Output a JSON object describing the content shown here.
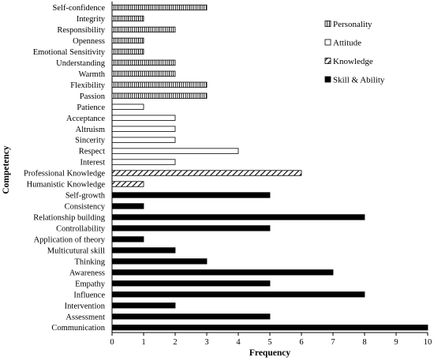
{
  "chart_data": {
    "type": "bar",
    "orientation": "horizontal",
    "xlabel": "Frequency",
    "ylabel": "Competency",
    "xlim": [
      0,
      10
    ],
    "xticks": [
      0,
      1,
      2,
      3,
      4,
      5,
      6,
      7,
      8,
      9,
      10
    ],
    "grid": false,
    "legend_position": "top-right",
    "categories": [
      "Self-confidence",
      "Integrity",
      "Responsibility",
      "Openness",
      "Emotional Sensitivity",
      "Understanding",
      "Warmth",
      "Flexibility",
      "Passion",
      "Patience",
      "Acceptance",
      "Altruism",
      "Sincerity",
      "Respect",
      "Interest",
      "Professional Knowledge",
      "Humanistic Knowledge",
      "Self-growth",
      "Consistency",
      "Relationship building",
      "Controllability",
      "Application of theory",
      "Multicutural skill",
      "Thinking",
      "Awareness",
      "Empathy",
      "Influence",
      "Intervention",
      "Assessment",
      "Communication"
    ],
    "values": [
      3,
      1,
      2,
      1,
      1,
      2,
      2,
      3,
      3,
      1,
      2,
      2,
      2,
      4,
      2,
      6,
      1,
      5,
      1,
      8,
      5,
      1,
      2,
      3,
      7,
      5,
      8,
      2,
      5,
      10
    ],
    "groups": [
      "Personality",
      "Personality",
      "Personality",
      "Personality",
      "Personality",
      "Personality",
      "Personality",
      "Personality",
      "Personality",
      "Attitude",
      "Attitude",
      "Attitude",
      "Attitude",
      "Attitude",
      "Attitude",
      "Knowledge",
      "Knowledge",
      "Skill & Ability",
      "Skill & Ability",
      "Skill & Ability",
      "Skill & Ability",
      "Skill & Ability",
      "Skill & Ability",
      "Skill & Ability",
      "Skill & Ability",
      "Skill & Ability",
      "Skill & Ability",
      "Skill & Ability",
      "Skill & Ability",
      "Skill & Ability"
    ],
    "series": [
      {
        "name": "Personality",
        "pattern": "vertical-hatch",
        "color": "#000000"
      },
      {
        "name": "Attitude",
        "pattern": "empty",
        "color": "#ffffff"
      },
      {
        "name": "Knowledge",
        "pattern": "diagonal-hatch",
        "color": "#000000"
      },
      {
        "name": "Skill & Ability",
        "pattern": "solid",
        "color": "#000000"
      }
    ]
  }
}
